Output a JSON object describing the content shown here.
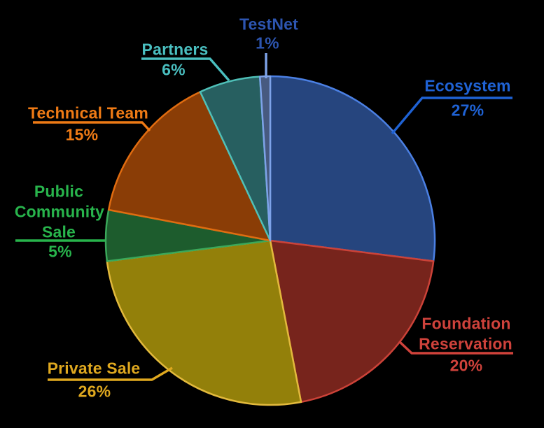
{
  "chart_data": {
    "type": "pie",
    "title": "",
    "background_color": "#000000",
    "legend": false,
    "direction": "clockwise",
    "start_angle": "12-o-clock",
    "slices": [
      {
        "id": "ecosystem",
        "label": "Ecosystem",
        "label_lines": [
          "Ecosystem"
        ],
        "value": 27,
        "pct_label": "27%",
        "fill": "#26457e",
        "stroke": "#4b80e4",
        "label_color": "#1f62d4",
        "leader_color": "#1f62d4"
      },
      {
        "id": "foundation-reservation",
        "label": "Foundation Reservation",
        "label_lines": [
          "Foundation",
          "Reservation"
        ],
        "value": 20,
        "pct_label": "20%",
        "fill": "#77241c",
        "stroke": "#cc4238",
        "label_color": "#cf423b",
        "leader_color": "#cf423b"
      },
      {
        "id": "private-sale",
        "label": "Private Sale",
        "label_lines": [
          "Private Sale"
        ],
        "value": 26,
        "pct_label": "26%",
        "fill": "#93800a",
        "stroke": "#e2b93c",
        "label_color": "#dfa81f",
        "leader_color": "#dfa81f"
      },
      {
        "id": "public-community-sale",
        "label": "Public Community Sale",
        "label_lines": [
          "Public",
          "Community",
          "Sale"
        ],
        "value": 5,
        "pct_label": "5%",
        "fill": "#1d5c2d",
        "stroke": "#3aa85a",
        "label_color": "#28b44c",
        "leader_color": "#28b44c"
      },
      {
        "id": "technical-team",
        "label": "Technical Team",
        "label_lines": [
          "Technical Team"
        ],
        "value": 15,
        "pct_label": "15%",
        "fill": "#8a3d06",
        "stroke": "#e06c10",
        "label_color": "#ee7a15",
        "leader_color": "#ee7a15"
      },
      {
        "id": "partners",
        "label": "Partners",
        "label_lines": [
          "Partners"
        ],
        "value": 6,
        "pct_label": "6%",
        "fill": "#275f60",
        "stroke": "#4fc0b8",
        "label_color": "#4abfc0",
        "leader_color": "#4abfc0"
      },
      {
        "id": "testnet",
        "label": "TestNet",
        "label_lines": [
          "TestNet"
        ],
        "value": 1,
        "pct_label": "1%",
        "fill": "#475a80",
        "stroke": "#7da2e8",
        "label_color": "#2d55b0",
        "leader_color": "#7da2e8"
      }
    ]
  }
}
